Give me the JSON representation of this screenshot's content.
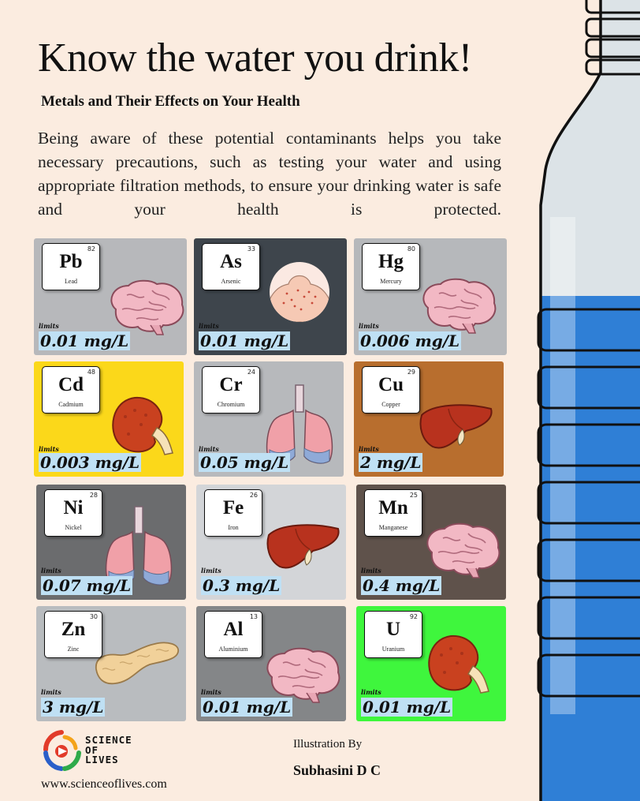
{
  "header": {
    "title": "Know the water you drink!",
    "subtitle": "Metals and Their Effects on Your Health",
    "description": "Being aware of these potential contaminants helps you take necessary precautions, such as testing your water and using appropriate filtration methods, to ensure your drinking water is safe and your health is protected."
  },
  "limits_label": "limits",
  "cards": [
    {
      "number": "82",
      "symbol": "Pb",
      "name": "Lead",
      "limit": "0.01 mg/L",
      "organ": "brain",
      "bg": "#b7b8bb"
    },
    {
      "number": "33",
      "symbol": "As",
      "name": "Arsenic",
      "limit": "0.01 mg/L",
      "organ": "skin",
      "bg": "#3e454c"
    },
    {
      "number": "80",
      "symbol": "Hg",
      "name": "Mercury",
      "limit": "0.006 mg/L",
      "organ": "brain",
      "bg": "#b6b8bb"
    },
    {
      "number": "48",
      "symbol": "Cd",
      "name": "Cadmium",
      "limit": "0.003 mg/L",
      "organ": "kidney",
      "bg": "#fbd81a"
    },
    {
      "number": "24",
      "symbol": "Cr",
      "name": "Chromium",
      "limit": "0.05 mg/L",
      "organ": "lungs",
      "bg": "#b7b9bc"
    },
    {
      "number": "29",
      "symbol": "Cu",
      "name": "Copper",
      "limit": "2 mg/L",
      "organ": "liver",
      "bg": "#b86e2e"
    },
    {
      "number": "28",
      "symbol": "Ni",
      "name": "Nickel",
      "limit": "0.07 mg/L",
      "organ": "lungs",
      "bg": "#6b6c6e"
    },
    {
      "number": "26",
      "symbol": "Fe",
      "name": "Iron",
      "limit": "0.3 mg/L",
      "organ": "liver",
      "bg": "#d3d5d8"
    },
    {
      "number": "25",
      "symbol": "Mn",
      "name": "Manganese",
      "limit": "0.4 mg/L",
      "organ": "brain",
      "bg": "#5f524b"
    },
    {
      "number": "30",
      "symbol": "Zn",
      "name": "Zinc",
      "limit": "3 mg/L",
      "organ": "pancreas",
      "bg": "#b9bcbf"
    },
    {
      "number": "13",
      "symbol": "Al",
      "name": "Aluminium",
      "limit": "0.01 mg/L",
      "organ": "brain",
      "bg": "#848688"
    },
    {
      "number": "92",
      "symbol": "U",
      "name": "Uranium",
      "limit": "0.01 mg/L",
      "organ": "kidney",
      "bg": "#3ff63d"
    }
  ],
  "footer": {
    "logo_line1": "SCIENCE",
    "logo_line2": "OF",
    "logo_line3": "LIVES",
    "website": "www.scienceoflives.com",
    "illustration_label": "Illustration By",
    "author": "Subhasini D C"
  },
  "colors": {
    "background": "#fbece0",
    "water": "#2f7fd6",
    "limit_highlight": "#bfe0f4"
  }
}
